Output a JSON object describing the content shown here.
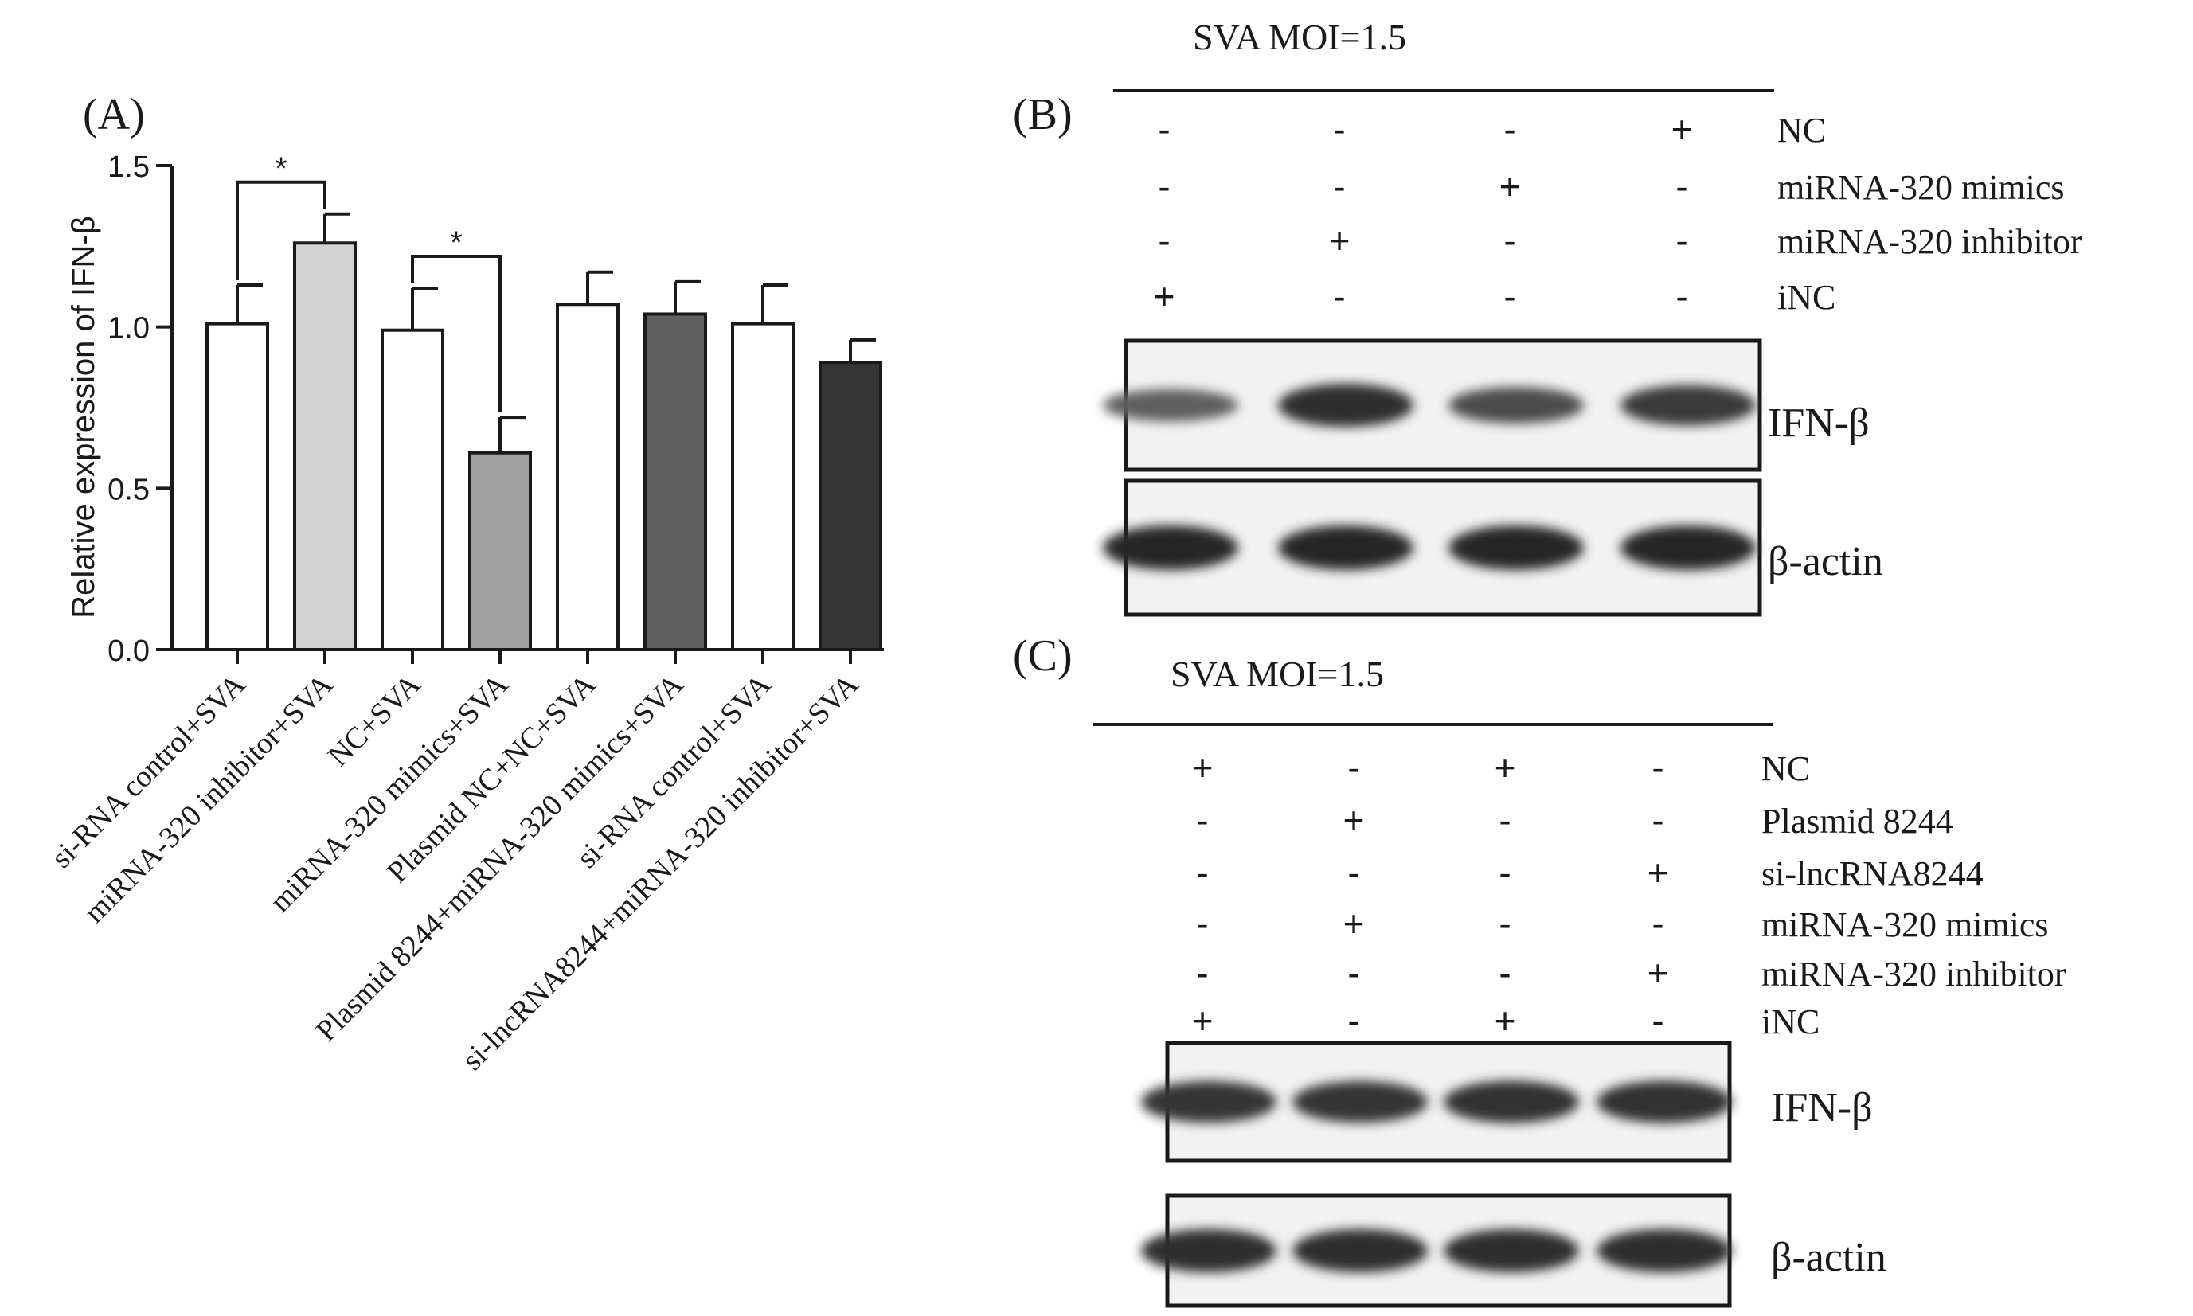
{
  "chart_data": {
    "type": "bar",
    "panel_label": "(A)",
    "ylabel": "Relative expression of IFN-β",
    "xlabel": "",
    "ylim": [
      0,
      1.5
    ],
    "yticks": [
      0.0,
      0.5,
      1.0,
      1.5
    ],
    "ytick_labels": [
      "0.0",
      "0.5",
      "1.0",
      "1.5"
    ],
    "grid": false,
    "categories": [
      "si-RNA control+SVA",
      "miRNA-320 inhibitor+SVA",
      "NC+SVA",
      "miRNA-320 mimics+SVA",
      "Plasmid NC+NC+SVA",
      "Plasmid 8244+miRNA-320 mimics+SVA",
      "si-RNA control+SVA",
      "si-lncRNA8244+miRNA-320 inhibitor+SVA"
    ],
    "values": [
      1.01,
      1.26,
      0.99,
      0.61,
      1.07,
      1.04,
      1.01,
      0.89
    ],
    "errors": [
      0.12,
      0.09,
      0.13,
      0.11,
      0.1,
      0.1,
      0.12,
      0.07
    ],
    "bar_colors": [
      "#ffffff",
      "#d2d2d2",
      "#ffffff",
      "#a2a2a2",
      "#ffffff",
      "#5f5f5f",
      "#ffffff",
      "#363636"
    ],
    "significance": [
      {
        "from": 0,
        "to": 1,
        "label": "*"
      },
      {
        "from": 2,
        "to": 3,
        "label": "*"
      }
    ]
  },
  "blot_b": {
    "panel_label": "(B)",
    "title": "SVA MOI=1.5",
    "conditions": [
      {
        "label": "NC",
        "signs": [
          "-",
          "-",
          "-",
          "+"
        ]
      },
      {
        "label": "miRNA-320 mimics",
        "signs": [
          "-",
          "-",
          "+",
          "-"
        ]
      },
      {
        "label": "miRNA-320 inhibitor",
        "signs": [
          "-",
          "+",
          "-",
          "-"
        ]
      },
      {
        "label": "iNC",
        "signs": [
          "+",
          "-",
          "-",
          "-"
        ]
      }
    ],
    "bands": [
      {
        "label": "IFN-β",
        "intensity": [
          0.55,
          0.95,
          0.7,
          0.85
        ]
      },
      {
        "label": "β-actin",
        "intensity": [
          1.0,
          1.0,
          1.0,
          1.0
        ]
      }
    ]
  },
  "blot_c": {
    "panel_label": "(C)",
    "title": "SVA MOI=1.5",
    "conditions": [
      {
        "label": "NC",
        "signs": [
          "+",
          "-",
          "+",
          "-"
        ]
      },
      {
        "label": "Plasmid 8244",
        "signs": [
          "-",
          "+",
          "-",
          "-"
        ]
      },
      {
        "label": "si-lncRNA8244",
        "signs": [
          "-",
          "-",
          "-",
          "+"
        ]
      },
      {
        "label": "miRNA-320 mimics",
        "signs": [
          "-",
          "+",
          "-",
          "-"
        ]
      },
      {
        "label": "miRNA-320 inhibitor",
        "signs": [
          "-",
          "-",
          "-",
          "+"
        ]
      },
      {
        "label": "iNC",
        "signs": [
          "+",
          "-",
          "+",
          "-"
        ]
      }
    ],
    "bands": [
      {
        "label": "IFN-β",
        "intensity": [
          0.9,
          0.9,
          0.92,
          0.92
        ]
      },
      {
        "label": "β-actin",
        "intensity": [
          0.95,
          0.95,
          0.95,
          0.95
        ]
      }
    ]
  }
}
